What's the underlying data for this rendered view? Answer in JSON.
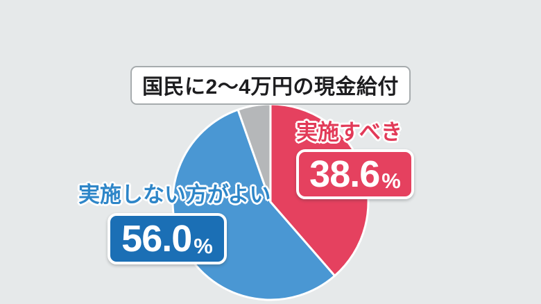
{
  "background_color": "#e6e9ea",
  "chart_data": {
    "type": "pie",
    "title": "国民に2〜4万円の現金給付",
    "direction": "clockwise",
    "start_angle_deg": 0,
    "legend_position": "none",
    "total": 100,
    "slices": [
      {
        "label": "実施すべき",
        "value": 38.6,
        "display": "38.6",
        "unit": "%",
        "color": "#e5415f",
        "box_color": "#e5415f",
        "label_color": "#e23a58"
      },
      {
        "label": "実施しない方がよい",
        "value": 56.0,
        "display": "56.0",
        "unit": "%",
        "color": "#4a97d3",
        "box_color": "#1b6fb5",
        "label_color": "#2e86c8"
      },
      {
        "label": "",
        "value": 5.4,
        "display": "",
        "unit": "",
        "color": "#b5b7b9",
        "box_color": "",
        "label_color": ""
      }
    ]
  }
}
